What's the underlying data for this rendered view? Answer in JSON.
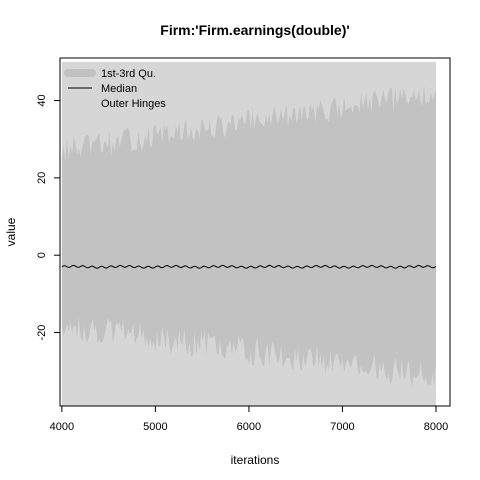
{
  "chart_data": {
    "type": "area",
    "title": "Firm:'Firm.earnings(double)'",
    "xlabel": "iterations",
    "ylabel": "value",
    "xlim": [
      3980,
      8150
    ],
    "ylim": [
      -39,
      51
    ],
    "x_ticks": [
      4000,
      5000,
      6000,
      7000,
      8000
    ],
    "x_tick_labels": [
      "4000",
      "5000",
      "6000",
      "7000",
      "8000"
    ],
    "y_ticks": [
      -20,
      0,
      20,
      40
    ],
    "y_tick_labels": [
      "-20",
      "0",
      "20",
      "40"
    ],
    "grid": false,
    "legend_position": "top-left",
    "legend": [
      {
        "label": "1st-3rd Qu.",
        "style": "thick-line",
        "color": "#c2c2c2"
      },
      {
        "label": "Median",
        "style": "thin-line",
        "color": "#000000"
      },
      {
        "label": "Outer Hinges",
        "style": "thick-line",
        "color": "#d6d6d6"
      }
    ],
    "x": [
      4000,
      8000
    ],
    "series": [
      {
        "name": "Outer Hinges",
        "upper_start": 50,
        "upper_end": 50,
        "lower_start": -39,
        "lower_end": -39
      },
      {
        "name": "1st-3rd Qu.",
        "upper_start": 26,
        "upper_end": 41,
        "lower_start": -17,
        "lower_end": -30
      },
      {
        "name": "Median",
        "start": -3,
        "end": -3
      }
    ],
    "colors": {
      "outer_hinges": "#d6d6d6",
      "quartiles": "#c2c2c2",
      "median": "#000000",
      "axis": "#000000",
      "background": "#ffffff"
    }
  }
}
